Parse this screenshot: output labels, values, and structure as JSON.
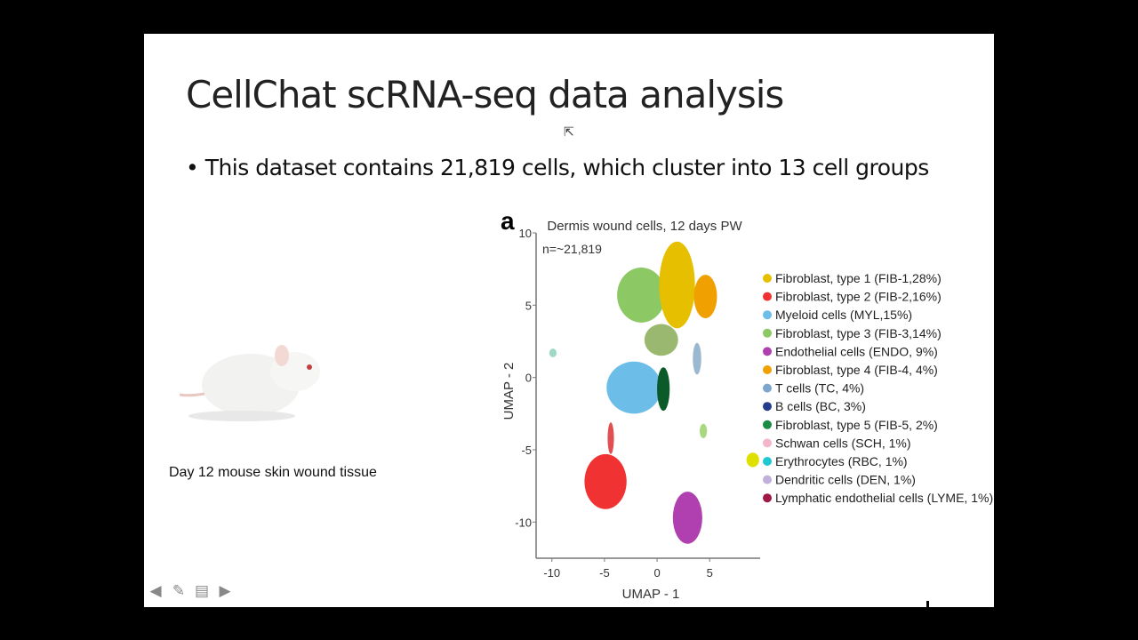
{
  "slide": {
    "title": "CellChat scRNA-seq data analysis",
    "bullet": "• This dataset contains 21,819 cells, which cluster into 13 cell groups",
    "image_caption": "Day 12 mouse skin wound tissue"
  },
  "controls": {
    "prev_icon": "arrow-left-icon",
    "pen_icon": "pen-icon",
    "menu_icon": "slide-menu-icon",
    "next_icon": "arrow-right-icon"
  },
  "chart_data": {
    "type": "scatter",
    "panel_label": "a",
    "title": "Dermis wound cells, 12 days PW",
    "annotation": "n=~21,819",
    "xlabel": "UMAP - 1",
    "ylabel": "UMAP - 2",
    "xlim": [
      -11.5,
      9.8
    ],
    "ylim": [
      -12.5,
      10
    ],
    "xticks": [
      "-10",
      "-5",
      "0",
      "5"
    ],
    "yticks": [
      "10",
      "5",
      "0",
      "-5",
      "-10"
    ],
    "legend_position": "right",
    "legend": [
      {
        "label": "Fibroblast, type 1 (FIB-1,28%)",
        "color": "#e6c000"
      },
      {
        "label": "Fibroblast, type 2 (FIB-2,16%)",
        "color": "#f03232"
      },
      {
        "label": "Myeloid cells (MYL,15%)",
        "color": "#6cbde8"
      },
      {
        "label": "Fibroblast, type 3 (FIB-3,14%)",
        "color": "#8cc864"
      },
      {
        "label": "Endothelial cells (ENDO, 9%)",
        "color": "#b040b0"
      },
      {
        "label": "Fibroblast, type 4 (FIB-4, 4%)",
        "color": "#f0a000"
      },
      {
        "label": "T cells (TC, 4%)",
        "color": "#7fa6cc"
      },
      {
        "label": "B cells (BC, 3%)",
        "color": "#243c8c"
      },
      {
        "label": "Fibroblast, type 5 (FIB-5, 2%)",
        "color": "#1a8c44"
      },
      {
        "label": "Schwan cells (SCH, 1%)",
        "color": "#f4b4cc"
      },
      {
        "label": "Erythrocytes (RBC, 1%)",
        "color": "#20c8d0"
      },
      {
        "label": "Dendritic cells (DEN, 1%)",
        "color": "#c0b0dc"
      },
      {
        "label": "Lymphatic endothelial cells (LYME, 1%)",
        "color": "#a01848"
      }
    ],
    "clusters": [
      {
        "name": "FIB-3",
        "color": "#8cc864",
        "x": -1.5,
        "y": 5.7,
        "rx": 2.3,
        "ry": 1.9
      },
      {
        "name": "FIB-1",
        "color": "#e6c000",
        "x": 1.9,
        "y": 6.4,
        "rx": 1.7,
        "ry": 3.0
      },
      {
        "name": "FIB-4",
        "color": "#f0a000",
        "x": 4.6,
        "y": 5.6,
        "rx": 1.1,
        "ry": 1.5
      },
      {
        "name": "mixed",
        "color": "#9ab870",
        "x": 0.4,
        "y": 2.6,
        "rx": 1.6,
        "ry": 1.1
      },
      {
        "name": "MYL",
        "color": "#6cbde8",
        "x": -2.2,
        "y": -0.7,
        "rx": 2.6,
        "ry": 1.8
      },
      {
        "name": "FIB-5",
        "color": "#0a5a2a",
        "x": 0.6,
        "y": -0.8,
        "rx": 0.6,
        "ry": 1.5
      },
      {
        "name": "TC",
        "color": "#9cb8d0",
        "x": 3.8,
        "y": 1.3,
        "rx": 0.4,
        "ry": 1.1
      },
      {
        "name": "strand",
        "color": "#e05050",
        "x": -4.4,
        "y": -4.2,
        "rx": 0.3,
        "ry": 1.1
      },
      {
        "name": "FIB-2",
        "color": "#f03232",
        "x": -4.9,
        "y": -7.2,
        "rx": 2.0,
        "ry": 1.9
      },
      {
        "name": "ENDO",
        "color": "#b040b0",
        "x": 2.9,
        "y": -9.7,
        "rx": 1.4,
        "ry": 1.8
      },
      {
        "name": "cluster-green-small",
        "color": "#a8d880",
        "x": 4.4,
        "y": -3.7,
        "rx": 0.35,
        "ry": 0.5
      },
      {
        "name": "cluster-yellow-small",
        "color": "#e0e000",
        "x": 9.1,
        "y": -5.7,
        "rx": 0.6,
        "ry": 0.5
      },
      {
        "name": "cluster-teal-small",
        "color": "#a0d8c8",
        "x": -9.9,
        "y": 1.7,
        "rx": 0.35,
        "ry": 0.3
      }
    ]
  }
}
